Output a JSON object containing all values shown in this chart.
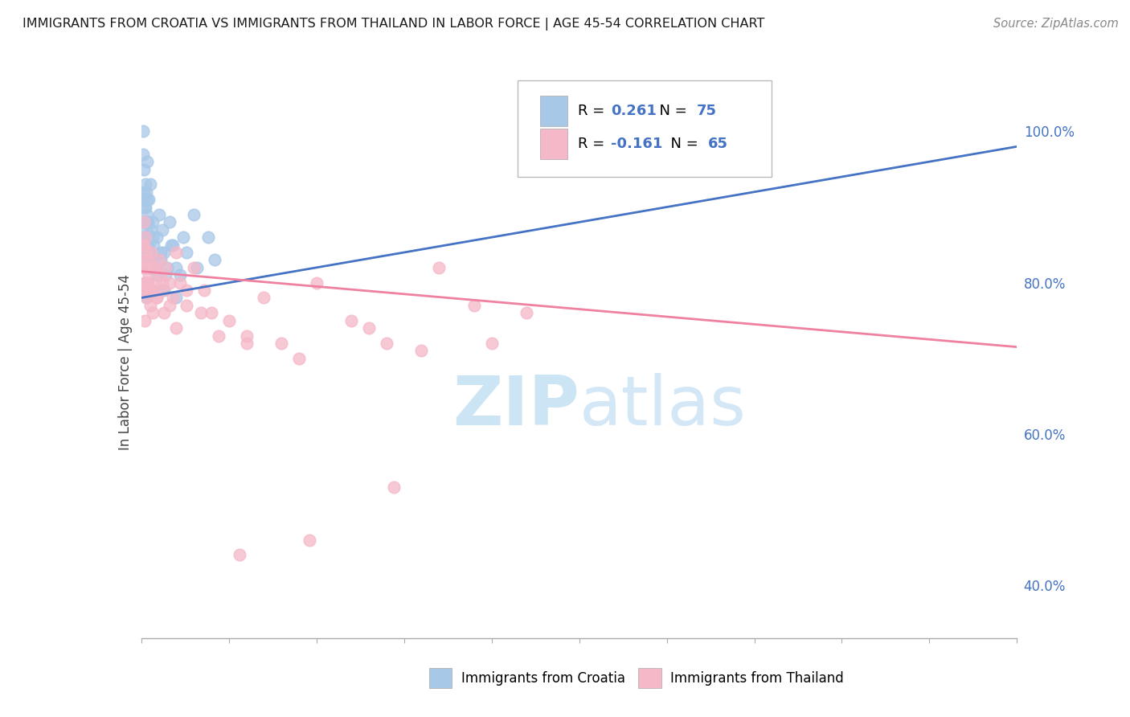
{
  "title": "IMMIGRANTS FROM CROATIA VS IMMIGRANTS FROM THAILAND IN LABOR FORCE | AGE 45-54 CORRELATION CHART",
  "source": "Source: ZipAtlas.com",
  "ylabel": "In Labor Force | Age 45-54",
  "xlim": [
    0.0,
    25.0
  ],
  "ylim": [
    33.0,
    106.0
  ],
  "croatia_R": 0.261,
  "croatia_N": 75,
  "thailand_R": -0.161,
  "thailand_N": 65,
  "croatia_color": "#a8c8e8",
  "thailand_color": "#f5b8c8",
  "croatia_line_color": "#4472c4",
  "thailand_line_color": "#f080a0",
  "background_color": "#ffffff",
  "grid_color": "#cccccc",
  "watermark_color": "#cce5f5",
  "right_tick_color": "#4472c4",
  "croatia_x": [
    0.05,
    0.06,
    0.07,
    0.07,
    0.08,
    0.08,
    0.09,
    0.09,
    0.1,
    0.1,
    0.1,
    0.11,
    0.11,
    0.12,
    0.12,
    0.13,
    0.13,
    0.14,
    0.14,
    0.15,
    0.15,
    0.16,
    0.16,
    0.17,
    0.18,
    0.19,
    0.2,
    0.21,
    0.22,
    0.23,
    0.25,
    0.27,
    0.3,
    0.32,
    0.35,
    0.4,
    0.45,
    0.5,
    0.55,
    0.6,
    0.65,
    0.7,
    0.8,
    0.9,
    1.0,
    1.2,
    1.5,
    0.08,
    0.09,
    0.1,
    0.11,
    0.12,
    0.13,
    0.14,
    0.15,
    0.16,
    0.17,
    0.18,
    0.2,
    0.22,
    0.25,
    0.28,
    0.32,
    0.38,
    0.45,
    0.55,
    0.65,
    0.75,
    0.85,
    1.0,
    1.1,
    1.3,
    1.6,
    1.9,
    2.1
  ],
  "croatia_y": [
    100,
    97,
    95,
    92,
    88,
    86,
    84,
    90,
    82,
    85,
    88,
    80,
    83,
    86,
    90,
    84,
    79,
    92,
    87,
    83,
    78,
    96,
    89,
    85,
    82,
    88,
    86,
    91,
    84,
    79,
    93,
    87,
    83,
    88,
    85,
    82,
    86,
    89,
    83,
    87,
    84,
    81,
    88,
    85,
    82,
    86,
    89,
    91,
    85,
    79,
    93,
    88,
    84,
    82,
    86,
    91,
    79,
    84,
    88,
    85,
    82,
    79,
    86,
    83,
    81,
    84,
    79,
    82,
    85,
    78,
    81,
    84,
    82,
    86,
    83
  ],
  "thailand_x": [
    0.05,
    0.06,
    0.07,
    0.08,
    0.09,
    0.1,
    0.11,
    0.12,
    0.13,
    0.14,
    0.15,
    0.16,
    0.18,
    0.2,
    0.22,
    0.25,
    0.28,
    0.3,
    0.33,
    0.37,
    0.4,
    0.45,
    0.5,
    0.55,
    0.6,
    0.65,
    0.7,
    0.8,
    0.9,
    1.0,
    1.1,
    1.3,
    1.5,
    1.8,
    2.0,
    2.5,
    3.0,
    3.5,
    4.0,
    5.0,
    6.0,
    7.0,
    8.5,
    9.5,
    11.0,
    0.08,
    0.12,
    0.18,
    0.25,
    0.35,
    0.45,
    0.6,
    0.8,
    1.0,
    1.3,
    1.7,
    2.2,
    3.0,
    4.5,
    6.5,
    8.0,
    10.0,
    2.8,
    4.8,
    7.2
  ],
  "thailand_y": [
    82,
    85,
    88,
    80,
    75,
    83,
    79,
    86,
    82,
    78,
    84,
    80,
    79,
    83,
    81,
    77,
    84,
    79,
    76,
    82,
    80,
    78,
    83,
    81,
    79,
    76,
    82,
    80,
    78,
    84,
    80,
    77,
    82,
    79,
    76,
    75,
    73,
    78,
    72,
    80,
    75,
    72,
    82,
    77,
    76,
    85,
    82,
    80,
    79,
    82,
    78,
    80,
    77,
    74,
    79,
    76,
    73,
    72,
    70,
    74,
    71,
    72,
    44,
    46,
    53
  ],
  "croatia_trendline_x": [
    0.0,
    25.0
  ],
  "croatia_trendline_y": [
    78.0,
    98.0
  ],
  "thailand_trendline_x": [
    0.0,
    25.0
  ],
  "thailand_trendline_y": [
    81.5,
    71.5
  ]
}
